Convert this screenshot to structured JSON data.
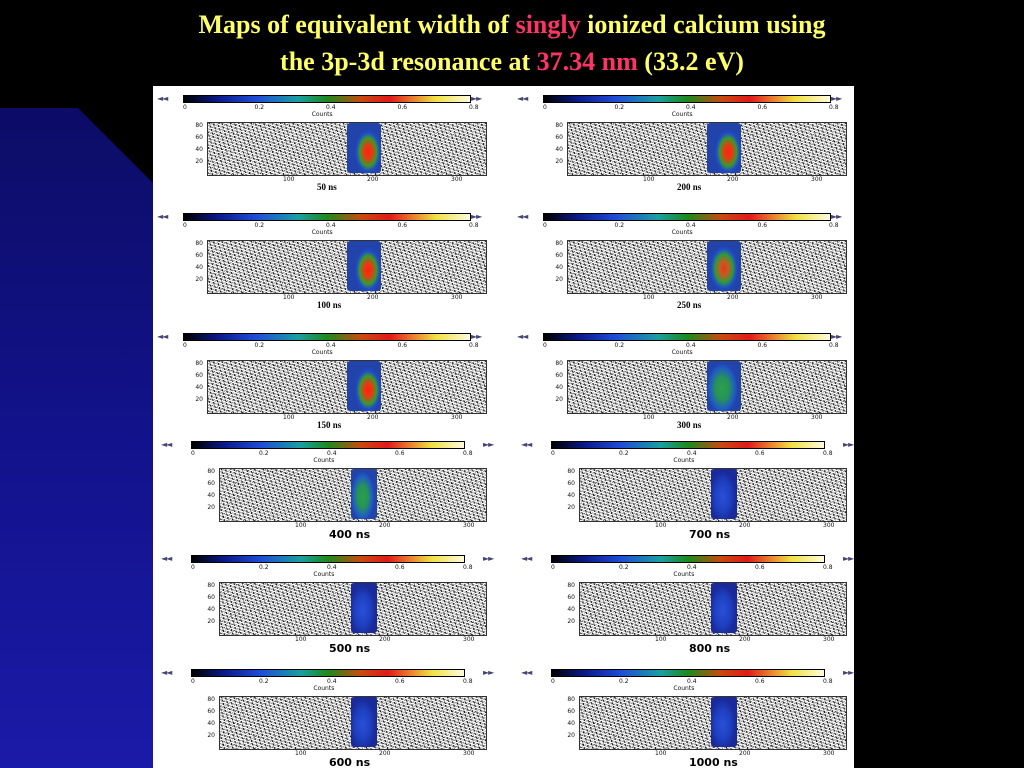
{
  "title": {
    "line1_pre": "Maps of equivalent width of ",
    "line1_hl": "singly",
    "line1_post": " ionized calcium using",
    "line2_pre": "the 3p-3d resonance at ",
    "line2_hl": "37.34 nm",
    "line2_post": " (33.2 eV)"
  },
  "colors": {
    "title": "#ffff66",
    "highlight": "#ff3366",
    "slide_bg": "#000000",
    "wedge": "#12128a"
  },
  "colorbar": {
    "ticks": [
      "0",
      "0.2",
      "0.4",
      "0.6",
      "0.8"
    ],
    "label": "Counts",
    "icon_left": "◄◄",
    "icon_right": "►►"
  },
  "axes": {
    "y_ticks": [
      "80",
      "60",
      "40",
      "20"
    ],
    "x_ticks": [
      "100",
      "200",
      "300"
    ]
  },
  "panels": [
    {
      "label": "50 ns",
      "intensity": "high"
    },
    {
      "label": "200 ns",
      "intensity": "high"
    },
    {
      "label": "100 ns",
      "intensity": "high"
    },
    {
      "label": "250 ns",
      "intensity": "medium"
    },
    {
      "label": "150 ns",
      "intensity": "high"
    },
    {
      "label": "300 ns",
      "intensity": "low"
    },
    {
      "label": "400 ns",
      "intensity": "low"
    },
    {
      "label": "700 ns",
      "intensity": "faint"
    },
    {
      "label": "500 ns",
      "intensity": "faint"
    },
    {
      "label": "800 ns",
      "intensity": "faint"
    },
    {
      "label": "600 ns",
      "intensity": "faint"
    },
    {
      "label": "1000 ns",
      "intensity": "faint"
    }
  ]
}
